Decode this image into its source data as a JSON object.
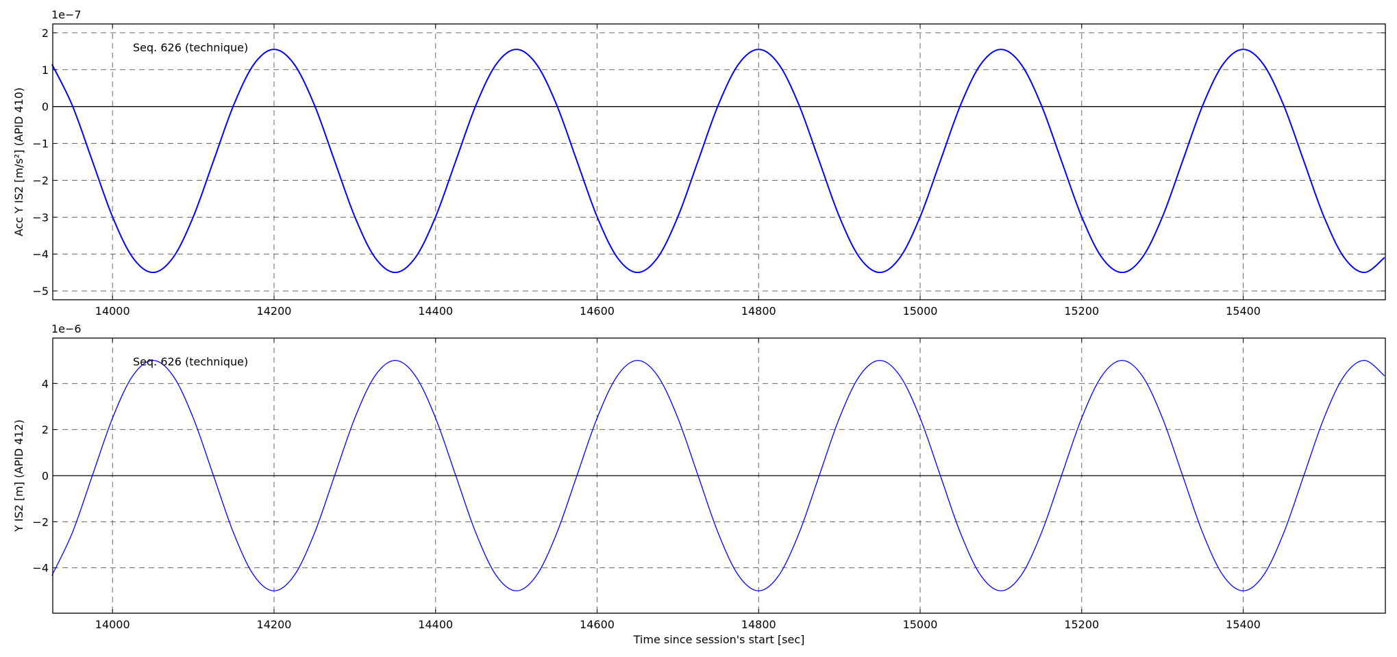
{
  "chart_data": [
    {
      "type": "line",
      "annotation": "Seq. 626 (technique)",
      "ylabel": "Acc Y IS2  [m/s²] (APID 410)",
      "y_offset_label": "1e−7",
      "xlim": [
        13926,
        15576
      ],
      "xticks": [
        14000,
        14200,
        14400,
        14600,
        14800,
        15000,
        15200,
        15400
      ],
      "ylim": [
        -5.24,
        2.24
      ],
      "yticks": [
        2,
        1,
        0,
        {
          "value": -1,
          "label": "−1"
        },
        {
          "value": -2,
          "label": "−2"
        },
        {
          "value": -3,
          "label": "−3"
        },
        {
          "value": -4,
          "label": "−4"
        },
        {
          "value": -5,
          "label": "−5"
        }
      ],
      "grid": true,
      "zero_line": true,
      "color": "#0000ff",
      "x": [
        13925,
        13950,
        13975,
        14000,
        14025,
        14050,
        14075,
        14100,
        14125,
        14150,
        14175,
        14200,
        14225,
        14250,
        14275,
        14300,
        14325,
        14350,
        14375,
        14400,
        14425,
        14450,
        14475,
        14500,
        14525,
        14550,
        14575,
        14600,
        14625,
        14650,
        14675,
        14700,
        14725,
        14750,
        14775,
        14800,
        14825,
        14850,
        14875,
        14900,
        14925,
        14950,
        14975,
        15000,
        15025,
        15050,
        15075,
        15100,
        15125,
        15150,
        15175,
        15200,
        15225,
        15250,
        15275,
        15300,
        15325,
        15350,
        15375,
        15400,
        15425,
        15450,
        15475,
        15500,
        15525,
        15550,
        15575
      ],
      "values": [
        1.145,
        0.04,
        -1.475,
        -2.99,
        -4.095,
        -4.5,
        -4.095,
        -2.99,
        -1.475,
        0.04,
        1.145,
        1.55,
        1.145,
        0.04,
        -1.475,
        -2.99,
        -4.095,
        -4.5,
        -4.095,
        -2.99,
        -1.475,
        0.04,
        1.145,
        1.55,
        1.145,
        0.04,
        -1.475,
        -2.99,
        -4.095,
        -4.5,
        -4.095,
        -2.99,
        -1.475,
        0.04,
        1.145,
        1.55,
        1.145,
        0.04,
        -1.475,
        -2.99,
        -4.095,
        -4.5,
        -4.095,
        -2.99,
        -1.475,
        0.04,
        1.145,
        1.55,
        1.145,
        0.04,
        -1.475,
        -2.99,
        -4.095,
        -4.5,
        -4.095,
        -2.99,
        -1.475,
        0.04,
        1.145,
        1.55,
        1.145,
        0.04,
        -1.475,
        -2.99,
        -4.095,
        -4.5,
        -4.095
      ]
    },
    {
      "type": "line",
      "annotation": "Seq. 626 (technique)",
      "ylabel": "Y IS2  [m] (APID 412)",
      "y_offset_label": "1e−6",
      "xlabel": "Time since session's start [sec]",
      "xlim": [
        13926,
        15576
      ],
      "xticks": [
        14000,
        14200,
        14400,
        14600,
        14800,
        15000,
        15200,
        15400
      ],
      "ylim": [
        -5.97,
        5.97
      ],
      "yticks": [
        4,
        2,
        0,
        {
          "value": -2,
          "label": "−2"
        },
        {
          "value": -4,
          "label": "−4"
        }
      ],
      "grid": true,
      "zero_line": true,
      "color": "#0000ff",
      "x": [
        13925,
        13950,
        13975,
        14000,
        14025,
        14050,
        14075,
        14100,
        14125,
        14150,
        14175,
        14200,
        14225,
        14250,
        14275,
        14300,
        14325,
        14350,
        14375,
        14400,
        14425,
        14450,
        14475,
        14500,
        14525,
        14550,
        14575,
        14600,
        14625,
        14650,
        14675,
        14700,
        14725,
        14750,
        14775,
        14800,
        14825,
        14850,
        14875,
        14900,
        14925,
        14950,
        14975,
        15000,
        15025,
        15050,
        15075,
        15100,
        15125,
        15150,
        15175,
        15200,
        15225,
        15250,
        15275,
        15300,
        15325,
        15350,
        15375,
        15400,
        15425,
        15450,
        15475,
        15500,
        15525,
        15550,
        15575
      ],
      "values": [
        -4.33,
        -2.5,
        0,
        2.5,
        4.33,
        5,
        4.33,
        2.5,
        0,
        -2.5,
        -4.33,
        -5,
        -4.33,
        -2.5,
        0,
        2.5,
        4.33,
        5,
        4.33,
        2.5,
        0,
        -2.5,
        -4.33,
        -5,
        -4.33,
        -2.5,
        0,
        2.5,
        4.33,
        5,
        4.33,
        2.5,
        0,
        -2.5,
        -4.33,
        -5,
        -4.33,
        -2.5,
        0,
        2.5,
        4.33,
        5,
        4.33,
        2.5,
        0,
        -2.5,
        -4.33,
        -5,
        -4.33,
        -2.5,
        0,
        2.5,
        4.33,
        5,
        4.33,
        2.5,
        0,
        -2.5,
        -4.33,
        -5,
        -4.33,
        -2.5,
        0,
        2.5,
        4.33,
        5,
        4.33
      ]
    }
  ]
}
